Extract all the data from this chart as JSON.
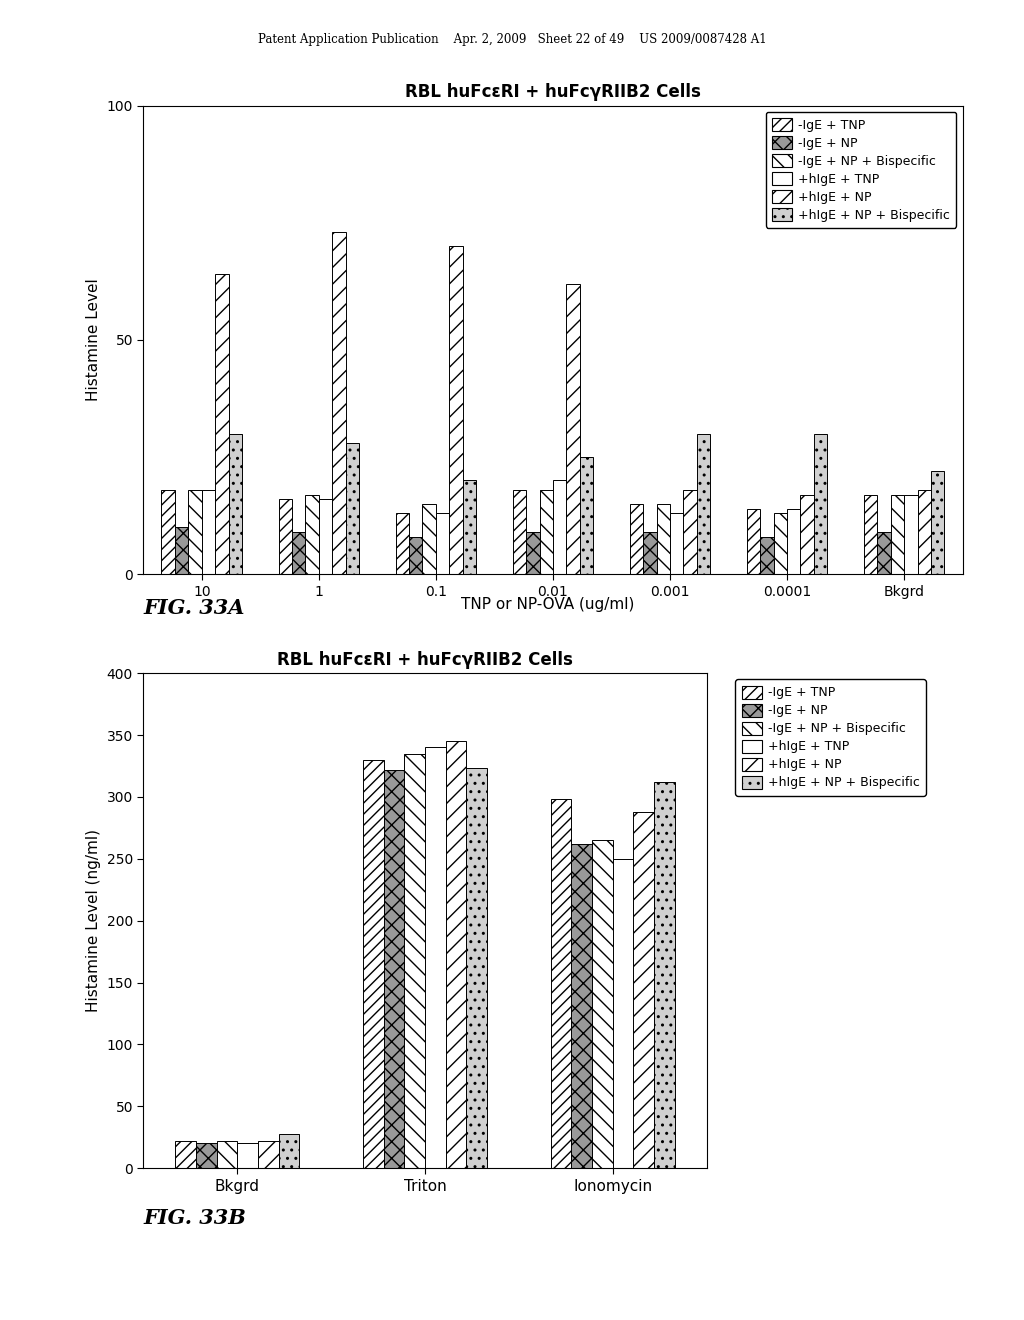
{
  "chart_a": {
    "title": "RBL huFcεRI + huFcγRIIB2 Cells",
    "xlabel": "TNP or NP-OVA (ug/ml)",
    "ylabel": "Histamine Level",
    "fig_label": "FIG. 33A",
    "ylim": [
      0,
      100
    ],
    "yticks": [
      0,
      50,
      100
    ],
    "categories": [
      "10",
      "1",
      "0.1",
      "0.01",
      "0.001",
      "0.0001",
      "Bkgrd"
    ],
    "series": [
      {
        "label": "-IgE + TNP",
        "values": [
          18,
          16,
          13,
          18,
          15,
          14,
          17
        ]
      },
      {
        "label": "-IgE + NP",
        "values": [
          10,
          9,
          8,
          9,
          9,
          8,
          9
        ]
      },
      {
        "label": "-IgE + NP + Bispecific",
        "values": [
          18,
          17,
          15,
          18,
          15,
          13,
          17
        ]
      },
      {
        "label": "+hIgE + TNP",
        "values": [
          18,
          16,
          13,
          20,
          13,
          14,
          17
        ]
      },
      {
        "label": "+hIgE + NP",
        "values": [
          64,
          73,
          70,
          62,
          18,
          17,
          18
        ]
      },
      {
        "label": "+hIgE + NP + Bispecific",
        "values": [
          30,
          28,
          20,
          25,
          30,
          30,
          22
        ]
      }
    ]
  },
  "chart_b": {
    "title": "RBL huFcεRI + huFcγRIIB2 Cells",
    "ylabel": "Histamine Level (ng/ml)",
    "fig_label": "FIG. 33B",
    "ylim": [
      0,
      400
    ],
    "yticks": [
      0,
      50,
      100,
      150,
      200,
      250,
      300,
      350,
      400
    ],
    "categories": [
      "Bkgrd",
      "Triton",
      "Ionomycin"
    ],
    "series": [
      {
        "label": "-IgE + TNP",
        "values": [
          22,
          330,
          298
        ]
      },
      {
        "label": "-IgE + NP",
        "values": [
          20,
          322,
          262
        ]
      },
      {
        "label": "-IgE + NP + Bispecific",
        "values": [
          22,
          335,
          265
        ]
      },
      {
        "label": "+hIgE + TNP",
        "values": [
          20,
          340,
          250
        ]
      },
      {
        "label": "+hIgE + NP",
        "values": [
          22,
          345,
          288
        ]
      },
      {
        "label": "+hIgE + NP + Bispecific",
        "values": [
          28,
          323,
          312
        ]
      }
    ]
  },
  "header_text": "Patent Application Publication    Apr. 2, 2009   Sheet 22 of 49    US 2009/0087428 A1"
}
